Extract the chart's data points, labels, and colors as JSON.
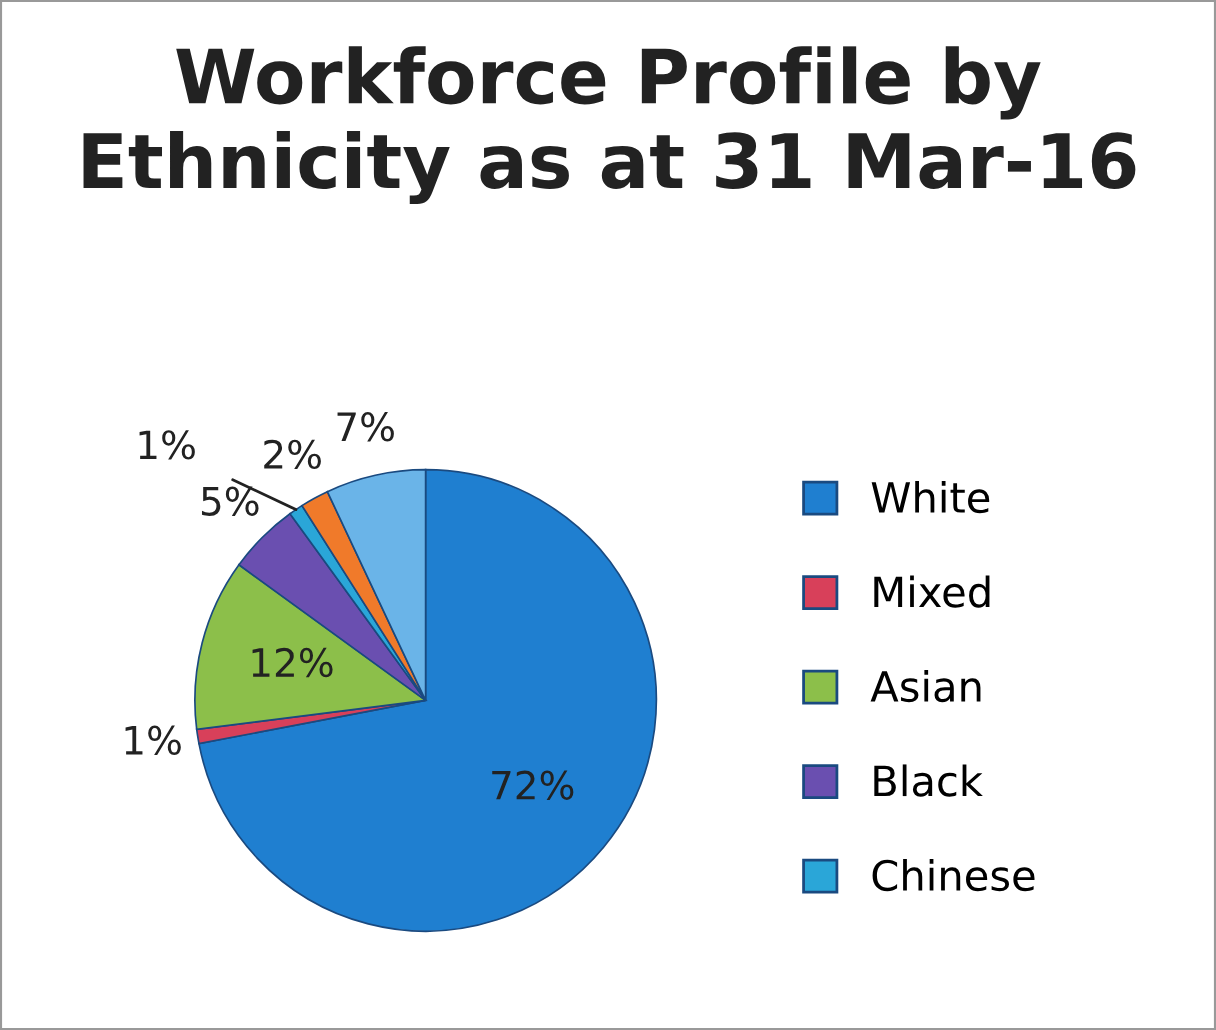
{
  "chart_data": {
    "type": "pie",
    "title": "Workforce Profile by Ethnicity as at 31 Mar-16",
    "categories": [
      "White",
      "Mixed",
      "Asian",
      "Black",
      "Chinese",
      null,
      null
    ],
    "values": [
      72,
      1,
      12,
      5,
      1,
      2,
      7
    ],
    "colors": [
      "#1f7fd0",
      "#d8405a",
      "#8cbf4a",
      "#6a4fb0",
      "#2aa6d8",
      "#f07a2a",
      "#6ab4e8"
    ],
    "value_labels": [
      "72%",
      "1%",
      "12%",
      "5%",
      "1%",
      "2%",
      "7%"
    ],
    "legend": "right"
  }
}
